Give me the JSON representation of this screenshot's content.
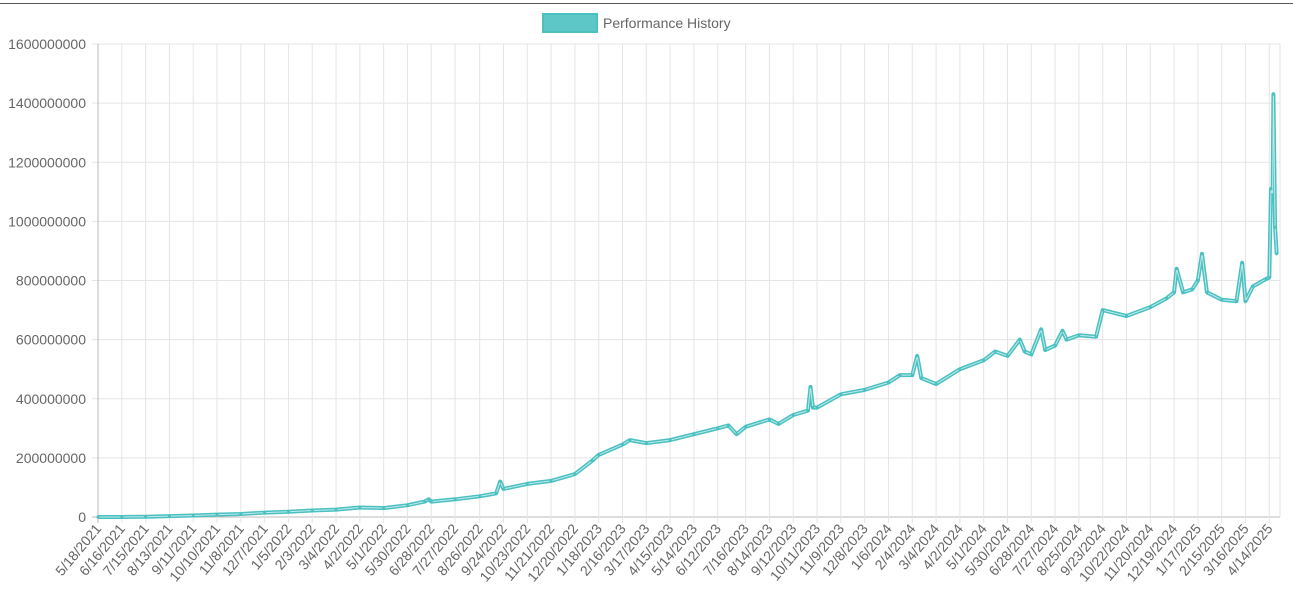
{
  "chart_data": {
    "type": "line",
    "title": "",
    "legend": {
      "label": "Performance History",
      "position": "top-center"
    },
    "colors": {
      "line": "#4bc0c0",
      "fill": "#4bc0c0",
      "grid": "#e5e5e5",
      "axis": "#999999"
    },
    "ylim": [
      0,
      1600000000
    ],
    "yticks": [
      "0",
      "200000000",
      "400000000",
      "600000000",
      "800000000",
      "1000000000",
      "1200000000",
      "1400000000",
      "1600000000"
    ],
    "ytick_values": [
      0,
      200000000,
      400000000,
      600000000,
      800000000,
      1000000000,
      1200000000,
      1400000000,
      1600000000
    ],
    "x_start": "5/18/2021",
    "x_end": "4/27/2025",
    "xticks": [
      "5/18/2021",
      "6/16/2021",
      "7/15/2021",
      "8/13/2021",
      "9/11/2021",
      "10/10/2021",
      "11/8/2021",
      "12/7/2021",
      "1/5/2022",
      "2/3/2022",
      "3/4/2022",
      "4/2/2022",
      "5/1/2022",
      "5/30/2022",
      "6/28/2022",
      "7/27/2022",
      "8/26/2022",
      "9/24/2022",
      "10/23/2022",
      "11/21/2022",
      "12/20/2022",
      "1/18/2023",
      "2/16/2023",
      "3/17/2023",
      "4/15/2023",
      "5/14/2023",
      "6/12/2023",
      "7/16/2023",
      "8/14/2023",
      "9/12/2023",
      "10/11/2023",
      "11/9/2023",
      "12/8/2023",
      "1/6/2024",
      "2/4/2024",
      "3/4/2024",
      "4/2/2024",
      "5/1/2024",
      "5/30/2024",
      "6/28/2024",
      "7/27/2024",
      "8/25/2024",
      "9/23/2024",
      "10/22/2024",
      "11/20/2024",
      "12/19/2024",
      "1/17/2025",
      "2/15/2025",
      "3/16/2025",
      "4/14/2025"
    ],
    "points": [
      [
        "5/18/2021",
        0
      ],
      [
        "6/16/2021",
        0
      ],
      [
        "7/15/2021",
        1000000
      ],
      [
        "8/13/2021",
        3000000
      ],
      [
        "9/11/2021",
        5000000
      ],
      [
        "10/10/2021",
        8000000
      ],
      [
        "11/8/2021",
        10000000
      ],
      [
        "12/7/2021",
        15000000
      ],
      [
        "1/5/2022",
        18000000
      ],
      [
        "2/3/2022",
        22000000
      ],
      [
        "3/4/2022",
        25000000
      ],
      [
        "4/2/2022",
        32000000
      ],
      [
        "5/1/2022",
        30000000
      ],
      [
        "5/30/2022",
        40000000
      ],
      [
        "6/20/2022",
        52000000
      ],
      [
        "6/25/2022",
        60000000
      ],
      [
        "6/28/2022",
        52000000
      ],
      [
        "7/27/2022",
        60000000
      ],
      [
        "8/26/2022",
        70000000
      ],
      [
        "9/15/2022",
        80000000
      ],
      [
        "9/20/2022",
        120000000
      ],
      [
        "9/24/2022",
        95000000
      ],
      [
        "10/23/2022",
        112000000
      ],
      [
        "11/21/2022",
        122000000
      ],
      [
        "12/20/2022",
        145000000
      ],
      [
        "1/10/2023",
        190000000
      ],
      [
        "1/18/2023",
        210000000
      ],
      [
        "2/16/2023",
        245000000
      ],
      [
        "2/25/2023",
        260000000
      ],
      [
        "3/17/2023",
        250000000
      ],
      [
        "4/15/2023",
        260000000
      ],
      [
        "5/14/2023",
        280000000
      ],
      [
        "6/12/2023",
        300000000
      ],
      [
        "6/25/2023",
        310000000
      ],
      [
        "7/5/2023",
        280000000
      ],
      [
        "7/16/2023",
        305000000
      ],
      [
        "8/14/2023",
        330000000
      ],
      [
        "8/25/2023",
        315000000
      ],
      [
        "9/12/2023",
        345000000
      ],
      [
        "9/30/2023",
        360000000
      ],
      [
        "10/3/2023",
        440000000
      ],
      [
        "10/6/2023",
        370000000
      ],
      [
        "10/11/2023",
        370000000
      ],
      [
        "11/9/2023",
        415000000
      ],
      [
        "12/8/2023",
        430000000
      ],
      [
        "1/6/2024",
        455000000
      ],
      [
        "1/20/2024",
        480000000
      ],
      [
        "2/4/2024",
        480000000
      ],
      [
        "2/10/2024",
        545000000
      ],
      [
        "2/15/2024",
        470000000
      ],
      [
        "3/4/2024",
        450000000
      ],
      [
        "4/2/2024",
        500000000
      ],
      [
        "5/1/2024",
        530000000
      ],
      [
        "5/15/2024",
        560000000
      ],
      [
        "5/30/2024",
        545000000
      ],
      [
        "6/14/2024",
        600000000
      ],
      [
        "6/20/2024",
        560000000
      ],
      [
        "6/28/2024",
        550000000
      ],
      [
        "7/10/2024",
        635000000
      ],
      [
        "7/15/2024",
        565000000
      ],
      [
        "7/27/2024",
        580000000
      ],
      [
        "8/5/2024",
        630000000
      ],
      [
        "8/10/2024",
        600000000
      ],
      [
        "8/25/2024",
        615000000
      ],
      [
        "9/15/2024",
        610000000
      ],
      [
        "9/23/2024",
        700000000
      ],
      [
        "10/22/2024",
        680000000
      ],
      [
        "11/20/2024",
        710000000
      ],
      [
        "12/10/2024",
        740000000
      ],
      [
        "12/19/2024",
        760000000
      ],
      [
        "12/22/2024",
        840000000
      ],
      [
        "12/30/2024",
        760000000
      ],
      [
        "1/10/2025",
        770000000
      ],
      [
        "1/17/2025",
        800000000
      ],
      [
        "1/22/2025",
        890000000
      ],
      [
        "1/28/2025",
        760000000
      ],
      [
        "2/15/2025",
        735000000
      ],
      [
        "3/5/2025",
        730000000
      ],
      [
        "3/12/2025",
        860000000
      ],
      [
        "3/16/2025",
        730000000
      ],
      [
        "3/25/2025",
        780000000
      ],
      [
        "4/10/2025",
        805000000
      ],
      [
        "4/14/2025",
        810000000
      ],
      [
        "4/16/2025",
        1110000000
      ],
      [
        "4/18/2025",
        1090000000
      ],
      [
        "4/19/2025",
        1430000000
      ],
      [
        "4/21/2025",
        980000000
      ],
      [
        "4/23/2025",
        890000000
      ]
    ]
  }
}
